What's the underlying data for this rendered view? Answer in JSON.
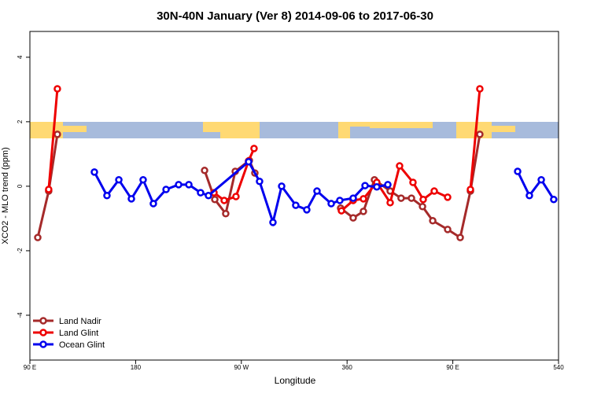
{
  "chart_data": {
    "type": "line",
    "title": "30N-40N January (Ver 8)   2014-09-06 to 2017-06-30",
    "xlabel": "Longitude",
    "ylabel": "XCO2 - MLO trend (ppm)",
    "xlim": [
      90,
      540
    ],
    "xticks": [
      {
        "value": 90,
        "label": "90 E"
      },
      180,
      {
        "value": 270,
        "label": "90 W"
      },
      360,
      {
        "value": 450,
        "label": "90 E"
      },
      540
    ],
    "ylim": [
      -5.39,
      4.8
    ],
    "yticks": [
      -4,
      -2,
      0,
      2,
      4
    ],
    "legend": "bottom-left",
    "series": [
      {
        "name": "Land Nadir",
        "color": "#a52a2a",
        "x": [
          96.7,
          106,
          113.4,
          null,
          238.7,
          247.4,
          256.7,
          264.8,
          276.8,
          281.5,
          null,
          354.5,
          365.2,
          373.9,
          383.3,
          396.7,
          406,
          414.8,
          424.2,
          432.9,
          445.6,
          456.3,
          465,
          473
        ],
        "values": [
          -1.59,
          -0.15,
          1.61,
          null,
          0.49,
          -0.41,
          -0.85,
          0.46,
          0.8,
          0.41,
          null,
          -0.68,
          -0.98,
          -0.78,
          0.2,
          -0.15,
          -0.37,
          -0.37,
          -0.63,
          -1.07,
          -1.34,
          -1.59,
          -0.15,
          1.61
        ]
      },
      {
        "name": "Land Glint",
        "color": "#ee0000",
        "x": [
          106,
          113.4,
          null,
          246.7,
          255.4,
          265.4,
          276.1,
          280.8,
          null,
          355.2,
          365.2,
          373.9,
          385.3,
          396.7,
          404.7,
          416.1,
          424.8,
          434.2,
          445.6,
          null,
          465,
          473
        ],
        "values": [
          -0.1,
          3.02,
          null,
          -0.2,
          -0.44,
          -0.32,
          0.78,
          1.17,
          null,
          -0.76,
          -0.44,
          -0.39,
          0.12,
          -0.51,
          0.63,
          0.12,
          -0.41,
          -0.15,
          -0.34,
          null,
          -0.1,
          3.02
        ]
      },
      {
        "name": "Ocean Glint",
        "color": "#0000ee",
        "x": [
          144.9,
          155.6,
          165.7,
          176.4,
          186.4,
          195.1,
          205.9,
          216.6,
          225.3,
          235.3,
          242,
          276.2,
          285.5,
          296.9,
          304.3,
          316.3,
          325.7,
          334.4,
          346.5,
          353.8,
          365.2,
          375.3,
          385.3,
          394.7,
          null,
          505.2,
          515.2,
          525.3,
          535.9
        ],
        "values": [
          0.44,
          -0.29,
          0.2,
          -0.39,
          0.2,
          -0.54,
          -0.1,
          0.05,
          0.05,
          -0.2,
          -0.29,
          0.76,
          0.15,
          -1.12,
          0,
          -0.59,
          -0.73,
          -0.15,
          -0.54,
          -0.44,
          -0.37,
          0.02,
          -0.02,
          0.05,
          null,
          0.46,
          -0.29,
          0.2,
          -0.41
        ]
      }
    ]
  }
}
